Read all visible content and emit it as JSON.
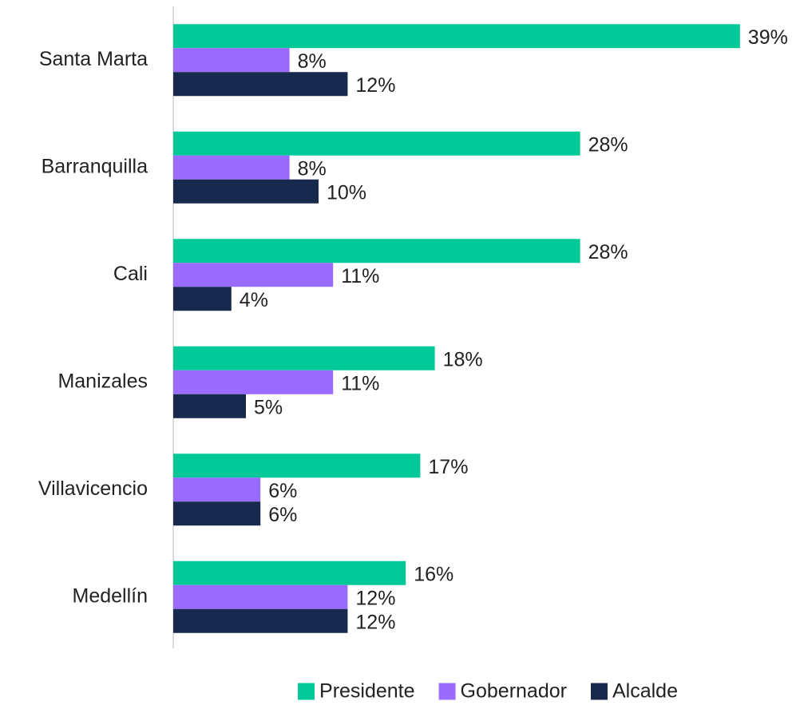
{
  "chart_data": {
    "type": "barh",
    "categories": [
      "Santa Marta",
      "Barranquilla",
      "Cali",
      "Manizales",
      "Villavicencio",
      "Medellín"
    ],
    "series": [
      {
        "name": "Presidente",
        "color": "#00C897",
        "values": [
          39,
          28,
          28,
          18,
          17,
          16
        ],
        "value_labels": [
          "39%",
          "28%",
          "28%",
          "18%",
          "17%",
          "16%"
        ]
      },
      {
        "name": "Gobernador",
        "color": "#9A6BFF",
        "values": [
          8,
          8,
          11,
          11,
          6,
          12
        ],
        "value_labels": [
          "8%",
          "8%",
          "11%",
          "11%",
          "6%",
          "12%"
        ]
      },
      {
        "name": "Alcalde",
        "color": "#17294D",
        "values": [
          12,
          10,
          4,
          5,
          6,
          12
        ],
        "value_labels": [
          "12%",
          "10%",
          "4%",
          "5%",
          "6%",
          "12%"
        ]
      }
    ],
    "xlim": [
      0,
      40
    ],
    "legend": "bottom"
  }
}
